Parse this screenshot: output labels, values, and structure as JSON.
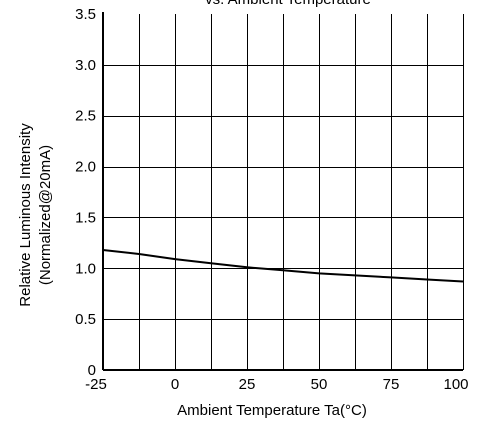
{
  "chart_data": {
    "type": "line",
    "title": "vs. Ambient Temperature",
    "xlabel": "Ambient Temperature Ta(°C)",
    "ylabel_line1": "Relative Luminous Intensity",
    "ylabel_line2": "(Normalized@20mA)",
    "xlim": [
      -25,
      100
    ],
    "ylim": [
      0,
      3.5
    ],
    "x_ticks": [
      -25,
      0,
      25,
      50,
      75,
      100
    ],
    "x_tick_labels": [
      "-25",
      "0",
      "25",
      "50",
      "75",
      "100"
    ],
    "y_ticks": [
      0,
      0.5,
      1.0,
      1.5,
      2.0,
      2.5,
      3.0,
      3.5
    ],
    "y_tick_labels": [
      "0",
      "0.5",
      "1.0",
      "1.5",
      "2.0",
      "2.5",
      "3.0",
      "3.5"
    ],
    "x_grid_step": 12.5,
    "grid": true,
    "series": [
      {
        "x": [
          -25,
          -12.5,
          0,
          12.5,
          25,
          37.5,
          50,
          62.5,
          75,
          87.5,
          100
        ],
        "values": [
          1.18,
          1.14,
          1.09,
          1.05,
          1.01,
          0.98,
          0.95,
          0.93,
          0.91,
          0.89,
          0.87
        ]
      }
    ],
    "colors": {
      "line": "#000000",
      "grid": "#000000",
      "background": "#ffffff"
    }
  }
}
